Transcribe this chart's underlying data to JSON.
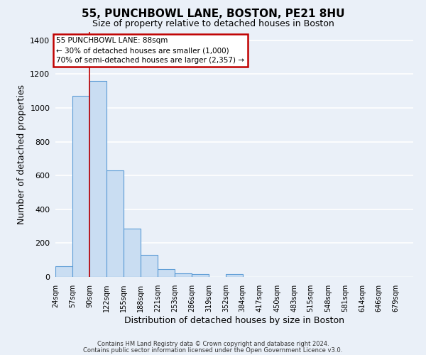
{
  "title1": "55, PUNCHBOWL LANE, BOSTON, PE21 8HU",
  "title2": "Size of property relative to detached houses in Boston",
  "xlabel": "Distribution of detached houses by size in Boston",
  "ylabel": "Number of detached properties",
  "bin_labels": [
    "24sqm",
    "57sqm",
    "90sqm",
    "122sqm",
    "155sqm",
    "188sqm",
    "221sqm",
    "253sqm",
    "286sqm",
    "319sqm",
    "352sqm",
    "384sqm",
    "417sqm",
    "450sqm",
    "483sqm",
    "515sqm",
    "548sqm",
    "581sqm",
    "614sqm",
    "646sqm",
    "679sqm"
  ],
  "bin_edges": [
    24,
    57,
    90,
    122,
    155,
    188,
    221,
    253,
    286,
    319,
    352,
    384,
    417,
    450,
    483,
    515,
    548,
    581,
    614,
    646,
    679,
    712
  ],
  "bar_values": [
    65,
    1070,
    1160,
    630,
    285,
    130,
    45,
    20,
    15,
    0,
    15,
    0,
    0,
    0,
    0,
    0,
    0,
    0,
    0,
    0,
    0
  ],
  "bar_color": "#c9ddf2",
  "bar_edge_color": "#5b9bd5",
  "red_line_x": 90,
  "annotation_text": "55 PUNCHBOWL LANE: 88sqm\n← 30% of detached houses are smaller (1,000)\n70% of semi-detached houses are larger (2,357) →",
  "annotation_box_edge": "#c00000",
  "ylim": [
    0,
    1450
  ],
  "yticks": [
    0,
    200,
    400,
    600,
    800,
    1000,
    1200,
    1400
  ],
  "footnote1": "Contains HM Land Registry data © Crown copyright and database right 2024.",
  "footnote2": "Contains public sector information licensed under the Open Government Licence v3.0.",
  "bg_color": "#eaf0f8",
  "plot_bg_color": "#eaf0f8",
  "grid_color": "#ffffff",
  "title1_fontsize": 11,
  "title2_fontsize": 9
}
